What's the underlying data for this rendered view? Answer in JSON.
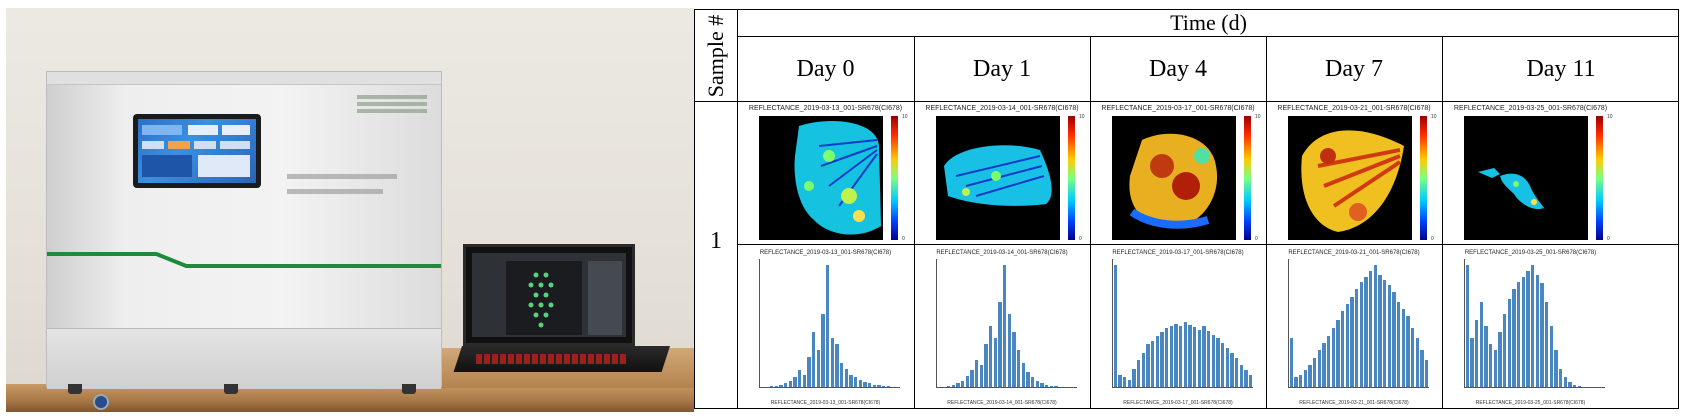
{
  "table": {
    "sample_header": "Sample #",
    "time_header": "Time (d)",
    "days": [
      "Day 0",
      "Day 1",
      "Day 4",
      "Day 7",
      "Day 11"
    ],
    "sample_number": "1",
    "heatmap_titles": [
      "REFLECTANCE_2019-03-13_001-SR678(CI678)",
      "REFLECTANCE_2019-03-14_001-SR678(CI678)",
      "REFLECTANCE_2019-03-17_001-SR678(CI678)",
      "REFLECTANCE_2019-03-21_001-SR678(CI678)",
      "REFLECTANCE_2019-03-25_001-SR678(CI678)"
    ],
    "histogram_titles": [
      "REFLECTANCE_2019-03-13_001-SR678(CI678)",
      "REFLECTANCE_2019-03-14_001-SR678(CI678)",
      "REFLECTANCE_2019-03-17_001-SR678(CI678)",
      "REFLECTANCE_2019-03-21_001-SR678(CI678)",
      "REFLECTANCE_2019-03-25_001-SR678(CI678)"
    ],
    "histogram_xlabels": [
      "REFLECTANCE_2019-03-13_001-SR678(CI678)",
      "REFLECTANCE_2019-03-14_001-SR678(CI678)",
      "REFLECTANCE_2019-03-17_001-SR678(CI678)",
      "REFLECTANCE_2019-03-21_001-SR678(CI678)",
      "REFLECTANCE_2019-03-25_001-SR678(CI678)"
    ],
    "colorbar_ticks": [
      "10",
      "8",
      "6",
      "4",
      "2",
      "0"
    ]
  },
  "colors": {
    "table_border": "#000000",
    "histogram_bar": "#4a86c0",
    "heatmap_background": "#000000"
  },
  "chart_data": [
    {
      "type": "bar",
      "values": [
        0,
        0,
        1,
        1,
        2,
        3,
        5,
        8,
        14,
        10,
        25,
        45,
        30,
        60,
        100,
        40,
        35,
        20,
        15,
        10,
        8,
        6,
        4,
        3,
        2,
        2,
        1,
        1,
        0,
        0
      ]
    },
    {
      "type": "bar",
      "values": [
        0,
        0,
        1,
        2,
        3,
        5,
        9,
        14,
        22,
        18,
        35,
        50,
        40,
        70,
        100,
        60,
        45,
        30,
        20,
        12,
        8,
        5,
        3,
        2,
        1,
        1,
        0,
        0,
        0,
        0
      ]
    },
    {
      "type": "bar",
      "values": [
        100,
        10,
        8,
        6,
        15,
        22,
        28,
        35,
        38,
        42,
        45,
        48,
        50,
        52,
        50,
        53,
        51,
        49,
        47,
        50,
        46,
        43,
        40,
        36,
        32,
        28,
        24,
        18,
        14,
        10
      ]
    },
    {
      "type": "bar",
      "values": [
        40,
        8,
        10,
        14,
        18,
        24,
        30,
        36,
        42,
        48,
        55,
        62,
        68,
        74,
        80,
        86,
        90,
        95,
        100,
        92,
        88,
        84,
        78,
        70,
        64,
        58,
        48,
        40,
        30,
        22
      ]
    },
    {
      "type": "bar",
      "values": [
        100,
        40,
        55,
        70,
        50,
        35,
        30,
        45,
        60,
        72,
        80,
        86,
        90,
        95,
        100,
        92,
        85,
        70,
        50,
        30,
        15,
        8,
        4,
        2,
        1,
        0,
        0,
        0,
        0,
        0
      ]
    }
  ]
}
